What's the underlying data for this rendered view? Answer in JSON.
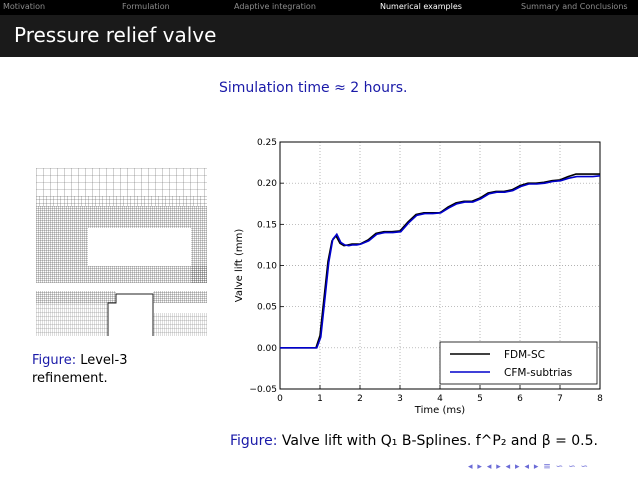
{
  "nav": {
    "items": [
      "Motivation",
      "Formulation",
      "Adaptive integration",
      "Numerical examples",
      "Summary and Conclusions"
    ],
    "active_index": 3
  },
  "slide": {
    "title": "Pressure relief valve",
    "subtitle": "Simulation time ≈ 2 hours."
  },
  "figure_left": {
    "label": "Figure:",
    "caption": "Level-3 refinement."
  },
  "figure_right": {
    "label": "Figure:",
    "caption": "Valve lift with Q₁ B-Splines. f^P₂ and β = 0.5."
  },
  "nav_controls": [
    "◂",
    "▸",
    "◂",
    "▸",
    "◂",
    "▸",
    "◂",
    "▸",
    "≡",
    "∽",
    "∽",
    "∽"
  ],
  "colors": {
    "accent": "#1a1aa8",
    "fdm": "#000000",
    "cfm": "#0000cc"
  },
  "chart_data": {
    "type": "line",
    "xlabel": "Time (ms)",
    "ylabel": "Valve lift (mm)",
    "xlim": [
      0,
      8
    ],
    "ylim": [
      -0.05,
      0.25
    ],
    "xticks": [
      0,
      1,
      2,
      3,
      4,
      5,
      6,
      7,
      8
    ],
    "yticks": [
      -0.05,
      0.0,
      0.05,
      0.1,
      0.15,
      0.2,
      0.25
    ],
    "ytick_labels": [
      "−0.05",
      "0.00",
      "0.05",
      "0.10",
      "0.15",
      "0.20",
      "0.25"
    ],
    "grid": true,
    "legend_position": "bottom-right",
    "series": [
      {
        "name": "FDM-SC",
        "color": "#000000",
        "x": [
          0,
          0.9,
          1.0,
          1.1,
          1.2,
          1.3,
          1.4,
          1.5,
          1.6,
          1.7,
          1.8,
          1.9,
          2.0,
          2.2,
          2.4,
          2.6,
          2.8,
          3.0,
          3.2,
          3.4,
          3.6,
          3.8,
          4.0,
          4.2,
          4.4,
          4.6,
          4.8,
          5.0,
          5.2,
          5.4,
          5.6,
          5.8,
          6.0,
          6.2,
          6.4,
          6.6,
          6.8,
          7.0,
          7.2,
          7.4,
          7.6,
          7.8,
          8.0
        ],
        "y": [
          0,
          0,
          0.015,
          0.06,
          0.105,
          0.13,
          0.136,
          0.127,
          0.124,
          0.125,
          0.126,
          0.126,
          0.126,
          0.131,
          0.139,
          0.141,
          0.141,
          0.142,
          0.153,
          0.162,
          0.164,
          0.164,
          0.164,
          0.171,
          0.176,
          0.178,
          0.178,
          0.182,
          0.188,
          0.19,
          0.19,
          0.192,
          0.197,
          0.2,
          0.2,
          0.201,
          0.203,
          0.204,
          0.208,
          0.211,
          0.211,
          0.211,
          0.211
        ]
      },
      {
        "name": "CFM-subtrias",
        "color": "#0000cc",
        "x": [
          0,
          0.92,
          1.02,
          1.12,
          1.22,
          1.32,
          1.42,
          1.52,
          1.62,
          1.72,
          1.82,
          1.92,
          2.02,
          2.22,
          2.42,
          2.62,
          2.82,
          3.02,
          3.22,
          3.42,
          3.62,
          3.82,
          4.02,
          4.22,
          4.42,
          4.62,
          4.82,
          5.02,
          5.22,
          5.42,
          5.62,
          5.82,
          6.02,
          6.22,
          6.42,
          6.62,
          6.82,
          7.02,
          7.22,
          7.42,
          7.62,
          7.82,
          8.0
        ],
        "y": [
          0,
          0,
          0.013,
          0.058,
          0.104,
          0.132,
          0.138,
          0.128,
          0.125,
          0.124,
          0.125,
          0.125,
          0.126,
          0.13,
          0.138,
          0.14,
          0.14,
          0.141,
          0.152,
          0.161,
          0.163,
          0.163,
          0.164,
          0.17,
          0.175,
          0.177,
          0.177,
          0.181,
          0.187,
          0.189,
          0.189,
          0.191,
          0.196,
          0.199,
          0.199,
          0.2,
          0.202,
          0.203,
          0.206,
          0.208,
          0.208,
          0.208,
          0.209
        ]
      }
    ]
  }
}
